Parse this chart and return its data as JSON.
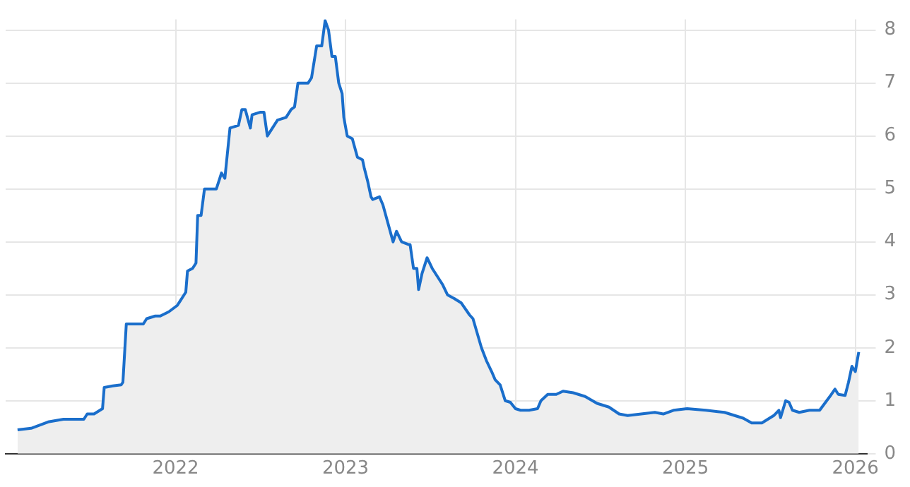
{
  "chart_data": {
    "type": "area",
    "x": [
      2021.07,
      2021.15,
      2021.25,
      2021.34,
      2021.46,
      2021.48,
      2021.52,
      2021.57,
      2021.58,
      2021.63,
      2021.68,
      2021.69,
      2021.71,
      2021.81,
      2021.83,
      2021.88,
      2021.91,
      2021.96,
      2022.01,
      2022.06,
      2022.07,
      2022.1,
      2022.12,
      2022.13,
      2022.15,
      2022.17,
      2022.24,
      2022.27,
      2022.29,
      2022.32,
      2022.37,
      2022.39,
      2022.41,
      2022.44,
      2022.45,
      2022.5,
      2022.52,
      2022.54,
      2022.6,
      2022.65,
      2022.68,
      2022.7,
      2022.72,
      2022.78,
      2022.8,
      2022.83,
      2022.86,
      2022.88,
      2022.9,
      2022.92,
      2022.94,
      2022.96,
      2022.98,
      2022.99,
      2023.01,
      2023.04,
      2023.07,
      2023.1,
      2023.11,
      2023.13,
      2023.15,
      2023.16,
      2023.2,
      2023.22,
      2023.28,
      2023.3,
      2023.33,
      2023.37,
      2023.38,
      2023.4,
      2023.42,
      2023.43,
      2023.45,
      2023.48,
      2023.51,
      2023.54,
      2023.57,
      2023.6,
      2023.64,
      2023.68,
      2023.73,
      2023.75,
      2023.8,
      2023.83,
      2023.86,
      2023.88,
      2023.91,
      2023.94,
      2023.97,
      2024.0,
      2024.03,
      2024.08,
      2024.13,
      2024.15,
      2024.19,
      2024.24,
      2024.28,
      2024.34,
      2024.41,
      2024.48,
      2024.55,
      2024.61,
      2024.66,
      2024.74,
      2024.82,
      2024.87,
      2024.93,
      2025.01,
      2025.12,
      2025.23,
      2025.34,
      2025.39,
      2025.45,
      2025.52,
      2025.55,
      2025.56,
      2025.59,
      2025.61,
      2025.63,
      2025.67,
      2025.73,
      2025.79,
      2025.82,
      2025.85,
      2025.88,
      2025.9,
      2025.94,
      2025.96,
      2025.98,
      2026.0,
      2026.02
    ],
    "series": [
      {
        "color": "#1a6ecb",
        "values": [
          0.45,
          0.48,
          0.6,
          0.65,
          0.65,
          0.75,
          0.75,
          0.85,
          1.25,
          1.28,
          1.3,
          1.35,
          2.45,
          2.45,
          2.55,
          2.6,
          2.6,
          2.68,
          2.8,
          3.05,
          3.45,
          3.5,
          3.6,
          4.5,
          4.5,
          5.0,
          5.0,
          5.3,
          5.2,
          6.15,
          6.2,
          6.5,
          6.5,
          6.15,
          6.4,
          6.45,
          6.45,
          6.0,
          6.3,
          6.35,
          6.5,
          6.55,
          7.0,
          7.0,
          7.1,
          7.7,
          7.7,
          8.18,
          8.0,
          7.5,
          7.5,
          7.0,
          6.8,
          6.35,
          6.0,
          5.95,
          5.6,
          5.55,
          5.4,
          5.15,
          4.85,
          4.8,
          4.85,
          4.7,
          4.0,
          4.2,
          4.0,
          3.95,
          3.95,
          3.5,
          3.5,
          3.1,
          3.4,
          3.7,
          3.5,
          3.35,
          3.2,
          3.0,
          2.93,
          2.85,
          2.62,
          2.55,
          2.0,
          1.75,
          1.55,
          1.4,
          1.3,
          1.0,
          0.97,
          0.85,
          0.82,
          0.82,
          0.85,
          1.0,
          1.12,
          1.12,
          1.18,
          1.15,
          1.08,
          0.95,
          0.88,
          0.75,
          0.72,
          0.75,
          0.78,
          0.75,
          0.82,
          0.85,
          0.82,
          0.78,
          0.67,
          0.58,
          0.58,
          0.72,
          0.82,
          0.68,
          1.0,
          0.97,
          0.82,
          0.78,
          0.82,
          0.82,
          0.95,
          1.08,
          1.22,
          1.12,
          1.1,
          1.35,
          1.65,
          1.55,
          1.92
        ]
      }
    ],
    "xlim": [
      2021.0,
      2026.07
    ],
    "xticks": [
      2022,
      2023,
      2024,
      2025,
      2026
    ],
    "ylim": [
      0,
      8.2
    ],
    "yticks": [
      0,
      1,
      2,
      3,
      4,
      5,
      6,
      7,
      8
    ],
    "grid": true,
    "legend": false,
    "marker": "none",
    "line_style": "solid"
  }
}
